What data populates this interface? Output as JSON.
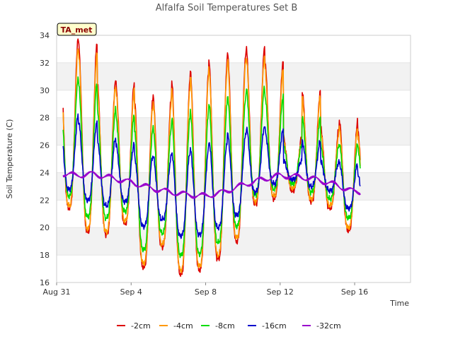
{
  "chart_data": {
    "type": "line",
    "title": "Alfalfa Soil Temperatures Set B",
    "xlabel": "Time",
    "ylabel": "Soil Temperature (C)",
    "badge": "TA_met",
    "ylim": [
      16,
      34
    ],
    "yticks": [
      "16",
      "18",
      "20",
      "22",
      "24",
      "26",
      "28",
      "30",
      "32",
      "34"
    ],
    "xlim": [
      "2016-08-31",
      "2016-09-19"
    ],
    "xticks": [
      {
        "label": "Aug 31",
        "day": 0
      },
      {
        "label": "Sep 4",
        "day": 4
      },
      {
        "label": "Sep 8",
        "day": 8
      },
      {
        "label": "Sep 12",
        "day": 12
      },
      {
        "label": "Sep 16",
        "day": 16
      }
    ],
    "grid": true,
    "legend_position": "bottom",
    "series": [
      {
        "name": "-2cm",
        "color": "#dd0000",
        "daily_max": [
          34.0,
          33.4,
          30.7,
          30.5,
          29.3,
          29.6,
          30.7,
          31.5,
          32.1,
          32.8,
          33.1,
          32.2,
          26.6,
          30.0,
          27.3,
          27.8,
          27.0
        ],
        "daily_min": [
          21.4,
          19.7,
          19.5,
          20.3,
          17.1,
          18.6,
          16.6,
          16.9,
          17.7,
          19.0,
          21.7,
          22.1,
          22.7,
          21.9,
          21.4,
          19.8,
          18.5
        ]
      },
      {
        "name": "-4cm",
        "color": "#ff9900",
        "daily_max": [
          33.2,
          32.7,
          30.3,
          30.0,
          28.8,
          29.1,
          30.2,
          31.0,
          31.6,
          32.2,
          32.5,
          31.6,
          26.3,
          29.6,
          26.9,
          27.3,
          26.6
        ],
        "daily_min": [
          21.6,
          19.9,
          19.7,
          20.5,
          17.4,
          18.8,
          16.9,
          17.2,
          18.0,
          19.3,
          21.9,
          22.3,
          22.9,
          22.1,
          21.6,
          20.0,
          18.7
        ]
      },
      {
        "name": "-8cm",
        "color": "#00dd00",
        "daily_max": [
          31.0,
          30.5,
          28.6,
          28.2,
          27.1,
          27.3,
          28.0,
          28.5,
          29.0,
          29.6,
          30.2,
          29.6,
          26.0,
          28.1,
          26.0,
          26.1,
          25.8
        ],
        "daily_min": [
          22.3,
          20.8,
          20.7,
          21.2,
          18.4,
          19.6,
          18.0,
          18.1,
          18.9,
          20.1,
          22.4,
          22.8,
          23.2,
          22.6,
          22.1,
          20.7,
          19.4
        ]
      },
      {
        "name": "-16cm",
        "color": "#0000cc",
        "daily_max": [
          28.2,
          27.7,
          26.5,
          26.1,
          25.2,
          25.2,
          25.5,
          25.7,
          26.3,
          26.8,
          27.4,
          27.1,
          24.9,
          26.3,
          24.8,
          24.7,
          23.8
        ],
        "daily_min": [
          22.8,
          22.0,
          21.6,
          21.9,
          20.1,
          20.6,
          19.4,
          19.5,
          20.0,
          20.9,
          22.6,
          23.2,
          23.5,
          23.0,
          22.7,
          21.4,
          20.5
        ]
      },
      {
        "name": "-32cm",
        "color": "#9900cc",
        "daily_mean": [
          24.0,
          23.8,
          23.9,
          23.6,
          23.3,
          22.9,
          22.6,
          22.4,
          22.3,
          22.6,
          23.1,
          23.5,
          23.8,
          23.7,
          23.5,
          23.1,
          22.6
        ]
      }
    ]
  }
}
